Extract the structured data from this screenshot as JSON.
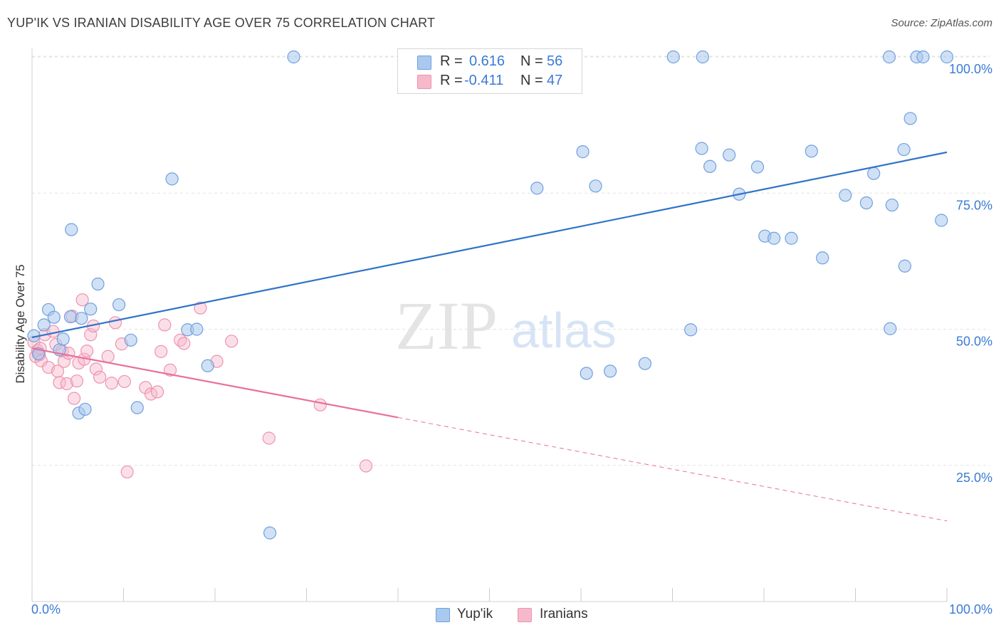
{
  "header": {
    "title": "YUP'IK VS IRANIAN DISABILITY AGE OVER 75 CORRELATION CHART",
    "source": "Source: ZipAtlas.com"
  },
  "watermark": {
    "zip": "ZIP",
    "atlas": "atlas"
  },
  "legend": {
    "rows": [
      {
        "r_label": "R =",
        "r_value": "0.616",
        "n_label": "N =",
        "n_value": "56"
      },
      {
        "r_label": "R =",
        "r_value": "-0.411",
        "n_label": "N =",
        "n_value": "47"
      }
    ],
    "series_names": [
      "Yup'ik",
      "Iranians"
    ]
  },
  "colors": {
    "yupik_fill": "#a9c9ef",
    "yupik_stroke": "#6fa0de",
    "yupik_line": "#2f73c9",
    "iranian_fill": "#f6b9cb",
    "iranian_stroke": "#ee93ae",
    "iranian_line": "#e8709b",
    "value_text": "#3a7bd5",
    "grid": "#e3e3e3"
  },
  "chart_data": {
    "type": "scatter",
    "title": "YUP'IK VS IRANIAN DISABILITY AGE OVER 75 CORRELATION CHART",
    "xlabel": "",
    "ylabel": "Disability Age Over 75",
    "xlim": [
      0,
      100
    ],
    "ylim": [
      0,
      103
    ],
    "x_tick_labels": [
      "0.0%",
      "100.0%"
    ],
    "y_tick_labels": [
      {
        "value": 25,
        "label": "25.0%"
      },
      {
        "value": 50,
        "label": "50.0%"
      },
      {
        "value": 75,
        "label": "75.0%"
      },
      {
        "value": 100,
        "label": "100.0%"
      }
    ],
    "grid": "horizontal dashed",
    "series": [
      {
        "name": "Yup'ik",
        "R": 0.616,
        "N": 56,
        "trend": {
          "x0": 0,
          "y0": 48.5,
          "x1": 100,
          "y1": 82.5
        },
        "points": [
          [
            0.2,
            48.8
          ],
          [
            0.7,
            45.5
          ],
          [
            1.3,
            50.8
          ],
          [
            1.8,
            53.6
          ],
          [
            2.4,
            52.2
          ],
          [
            3.0,
            46.2
          ],
          [
            3.4,
            48.2
          ],
          [
            4.2,
            52.3
          ],
          [
            4.3,
            68.3
          ],
          [
            5.1,
            34.6
          ],
          [
            5.4,
            52.0
          ],
          [
            5.8,
            35.3
          ],
          [
            6.4,
            53.7
          ],
          [
            7.2,
            58.3
          ],
          [
            9.5,
            54.5
          ],
          [
            10.8,
            48.0
          ],
          [
            11.5,
            35.6
          ],
          [
            15.3,
            77.6
          ],
          [
            17.0,
            49.9
          ],
          [
            18.0,
            50.0
          ],
          [
            19.2,
            43.3
          ],
          [
            26.0,
            12.6
          ],
          [
            28.6,
            100.0
          ],
          [
            55.2,
            75.9
          ],
          [
            58.4,
            100.0
          ],
          [
            60.2,
            82.6
          ],
          [
            60.6,
            41.9
          ],
          [
            61.6,
            76.3
          ],
          [
            63.2,
            42.3
          ],
          [
            67.0,
            43.7
          ],
          [
            70.1,
            100.0
          ],
          [
            72.0,
            49.9
          ],
          [
            73.2,
            83.2
          ],
          [
            73.3,
            100.0
          ],
          [
            74.1,
            79.9
          ],
          [
            76.2,
            82.0
          ],
          [
            77.3,
            74.8
          ],
          [
            79.3,
            79.8
          ],
          [
            80.1,
            67.1
          ],
          [
            81.1,
            66.7
          ],
          [
            83.0,
            66.7
          ],
          [
            85.2,
            82.7
          ],
          [
            86.4,
            63.1
          ],
          [
            88.9,
            74.6
          ],
          [
            91.2,
            73.2
          ],
          [
            92.0,
            78.6
          ],
          [
            93.7,
            100.0
          ],
          [
            93.8,
            50.1
          ],
          [
            94.0,
            72.8
          ],
          [
            95.3,
            83.0
          ],
          [
            95.4,
            61.6
          ],
          [
            96.0,
            88.7
          ],
          [
            96.7,
            100.0
          ],
          [
            97.4,
            100.0
          ],
          [
            99.4,
            70.0
          ],
          [
            100.0,
            100.0
          ]
        ]
      },
      {
        "name": "Iranians",
        "R": -0.411,
        "N": 47,
        "trend": {
          "x0": 0,
          "y0": 46.5,
          "x1": 40,
          "y1": 33.8,
          "x_dash_end": 100,
          "y_dash_end": 14.8
        },
        "points": [
          [
            0.2,
            47.6
          ],
          [
            0.4,
            45.0
          ],
          [
            0.6,
            46.1
          ],
          [
            0.8,
            45.3
          ],
          [
            1.0,
            44.2
          ],
          [
            1.4,
            49.0
          ],
          [
            1.8,
            43.0
          ],
          [
            2.3,
            49.6
          ],
          [
            2.6,
            47.2
          ],
          [
            2.8,
            42.3
          ],
          [
            3.0,
            40.2
          ],
          [
            3.3,
            46.0
          ],
          [
            3.5,
            44.1
          ],
          [
            3.8,
            40.0
          ],
          [
            4.0,
            45.6
          ],
          [
            4.4,
            52.4
          ],
          [
            4.6,
            37.3
          ],
          [
            4.9,
            40.5
          ],
          [
            5.1,
            43.8
          ],
          [
            5.5,
            55.4
          ],
          [
            5.7,
            44.5
          ],
          [
            6.0,
            46.0
          ],
          [
            6.4,
            49.0
          ],
          [
            6.7,
            50.6
          ],
          [
            7.0,
            42.7
          ],
          [
            7.4,
            41.2
          ],
          [
            8.3,
            45.0
          ],
          [
            8.7,
            40.1
          ],
          [
            9.1,
            51.2
          ],
          [
            9.8,
            47.3
          ],
          [
            10.1,
            40.4
          ],
          [
            10.4,
            23.8
          ],
          [
            12.4,
            39.3
          ],
          [
            13.0,
            38.1
          ],
          [
            13.7,
            38.5
          ],
          [
            14.1,
            45.9
          ],
          [
            14.5,
            50.8
          ],
          [
            15.1,
            42.5
          ],
          [
            16.2,
            48.0
          ],
          [
            16.6,
            47.4
          ],
          [
            18.4,
            53.9
          ],
          [
            20.2,
            44.1
          ],
          [
            21.8,
            47.8
          ],
          [
            25.9,
            30.0
          ],
          [
            31.5,
            36.1
          ],
          [
            36.5,
            24.9
          ],
          [
            0.9,
            46.5
          ]
        ]
      }
    ]
  }
}
